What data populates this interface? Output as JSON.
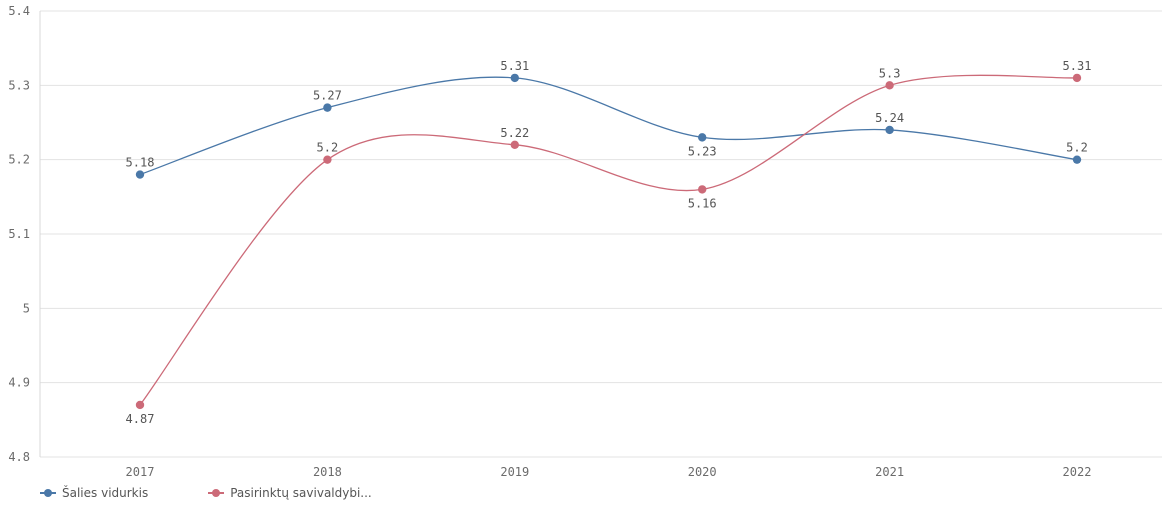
{
  "chart_data": {
    "type": "line",
    "title": "",
    "xlabel": "",
    "ylabel": "",
    "categories": [
      "2017",
      "2018",
      "2019",
      "2020",
      "2021",
      "2022"
    ],
    "ylim": [
      4.8,
      5.4
    ],
    "yticks": [
      "4.8",
      "4.9",
      "5",
      "5.1",
      "5.2",
      "5.3",
      "5.4"
    ],
    "grid": true,
    "legend_position": "bottom-left",
    "series": [
      {
        "name": "Šalies vidurkis",
        "color": "#4a78a8",
        "values": [
          5.18,
          5.27,
          5.31,
          5.23,
          5.24,
          5.2
        ],
        "labels": [
          "5.18",
          "5.27",
          "5.31",
          "5.23",
          "5.24",
          "5.2"
        ],
        "label_pos": [
          "above",
          "above",
          "above",
          "below",
          "above",
          "above"
        ]
      },
      {
        "name": "Pasirinktų savivaldybi...",
        "color": "#cc6a78",
        "values": [
          4.87,
          5.2,
          5.22,
          5.16,
          5.3,
          5.31
        ],
        "labels": [
          "4.87",
          "5.2",
          "5.22",
          "5.16",
          "5.3",
          "5.31"
        ],
        "label_pos": [
          "below",
          "above",
          "above",
          "below",
          "above",
          "above"
        ]
      }
    ]
  }
}
